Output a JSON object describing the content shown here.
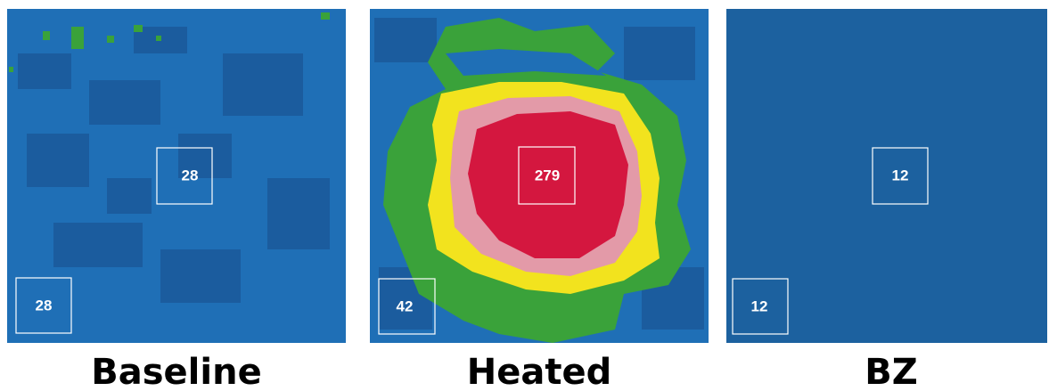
{
  "panels": [
    {
      "title": "Baseline",
      "center_value": "28",
      "corner_value": "28"
    },
    {
      "title": "Heated",
      "center_value": "279",
      "corner_value": "42"
    },
    {
      "title": "BZ",
      "center_value": "12",
      "corner_value": "12"
    }
  ]
}
